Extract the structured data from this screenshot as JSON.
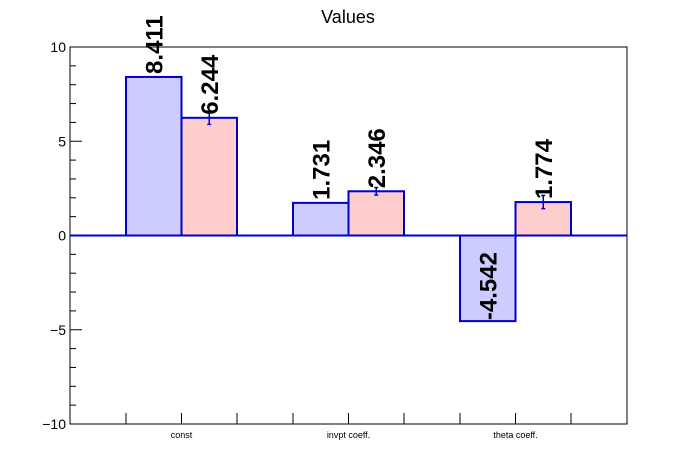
{
  "chart_data": {
    "type": "bar",
    "title": "Values",
    "categories": [
      "const",
      "invpt coeff.",
      "theta coeff."
    ],
    "series": [
      {
        "values": [
          8.411,
          1.731,
          -4.542
        ],
        "errors": [
          0,
          0,
          0
        ],
        "labels": [
          "8.411",
          "1.731",
          "-4.542"
        ],
        "fill": "#ccccff",
        "stroke": "#0000cc"
      },
      {
        "values": [
          6.244,
          2.346,
          1.774
        ],
        "errors": [
          0.35,
          0.2,
          0.35
        ],
        "labels": [
          "6.244",
          "2.346",
          "1.774"
        ],
        "fill": "#ffcccc",
        "stroke": "#0000cc"
      }
    ],
    "ylim": [
      -10,
      10
    ],
    "yticks": [
      {
        "value": -10,
        "label": "−10"
      },
      {
        "value": -5,
        "label": "−5"
      },
      {
        "value": 0,
        "label": "0"
      },
      {
        "value": 5,
        "label": "5"
      },
      {
        "value": 10,
        "label": "10"
      }
    ],
    "y_minor_step": 1,
    "xlabel": "",
    "ylabel": "",
    "grid": false,
    "baseline_color": "#0000cc"
  }
}
